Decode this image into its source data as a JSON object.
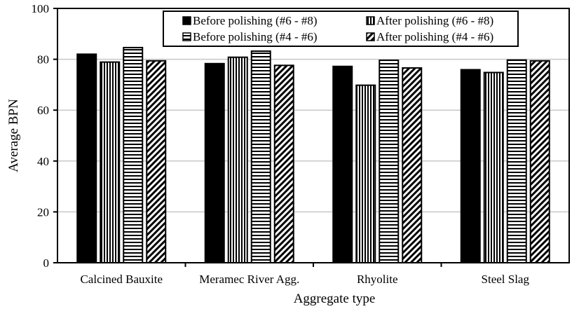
{
  "chart_data": {
    "type": "bar",
    "title": "",
    "xlabel": "Aggregate type",
    "ylabel": "Average BPN",
    "ylim": [
      0,
      100
    ],
    "yticks": [
      0,
      20,
      40,
      60,
      80,
      100
    ],
    "grid": true,
    "legend_position": "top-center",
    "categories": [
      "Calcined Bauxite",
      "Meramec River Agg.",
      "Rhyolite",
      "Steel Slag"
    ],
    "series": [
      {
        "name": "Before polishing (#6 - #8)",
        "pattern": "solid",
        "values": [
          82,
          78.3,
          77.2,
          75.9
        ]
      },
      {
        "name": "After polishing (#6 - #8)",
        "pattern": "vertical",
        "values": [
          78.9,
          80.8,
          69.8,
          74.8
        ]
      },
      {
        "name": "Before polishing (#4 - #6)",
        "pattern": "horizontal",
        "values": [
          84.6,
          83.2,
          79.6,
          79.7
        ]
      },
      {
        "name": "After polishing (#4 - #6)",
        "pattern": "diagonal",
        "values": [
          79.4,
          77.6,
          76.6,
          79.4
        ]
      }
    ],
    "colors": {
      "bar": "#000000",
      "grid": "#c8c8c8",
      "axis": "#000000"
    }
  }
}
